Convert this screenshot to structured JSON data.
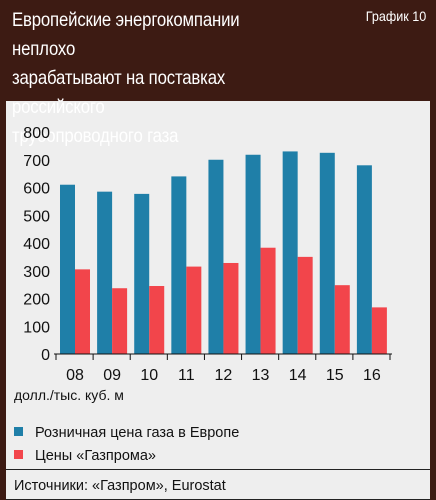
{
  "header": {
    "title": "Европейские энергокомпании неплохо\nзарабатывают на поставках российского\nтрубопроводного газа",
    "tag": "График 10"
  },
  "unit_label": "долл./тыс. куб. м",
  "source": "Источники: «Газпром», Eurostat",
  "colors": {
    "series1": "#1f7fa8",
    "series2": "#f2454b",
    "header_bg": "#3d1b13",
    "page_bg": "#eeeeee"
  },
  "chart_data": {
    "type": "bar",
    "categories": [
      "08",
      "09",
      "10",
      "11",
      "12",
      "13",
      "14",
      "15",
      "16"
    ],
    "series": [
      {
        "name": "Розничная цена газа в Европе",
        "values": [
          610,
          585,
          577,
          640,
          700,
          718,
          730,
          725,
          680
        ]
      },
      {
        "name": "Цены «Газпрома»",
        "values": [
          305,
          237,
          245,
          315,
          328,
          383,
          350,
          248,
          168
        ]
      }
    ],
    "ylim": [
      0,
      800
    ],
    "yticks": [
      0,
      100,
      200,
      300,
      400,
      500,
      600,
      700,
      800
    ],
    "grid": false,
    "legend": "bottom"
  }
}
